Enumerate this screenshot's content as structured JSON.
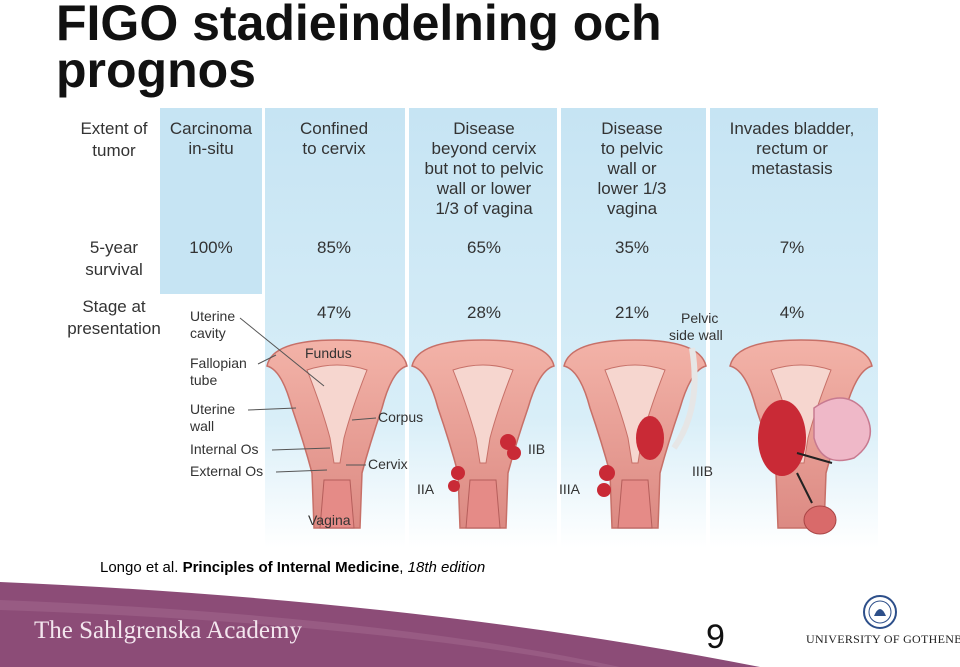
{
  "slide": {
    "title_line1": "FIGO stadieindelning och",
    "title_line2": "prognos",
    "page_number": "9"
  },
  "figure": {
    "row_labels": {
      "extent_line1": "Extent of",
      "extent_line2": "tumor",
      "survival_line1": "5-year",
      "survival_line2": "survival",
      "stage_line1": "Stage at",
      "stage_line2": "presentation"
    },
    "columns": [
      {
        "extent": [
          "Carcinoma",
          "in-situ"
        ],
        "survival": "100%",
        "stage": ""
      },
      {
        "extent": [
          "Confined",
          "to cervix"
        ],
        "survival": "85%",
        "stage": "47%"
      },
      {
        "extent": [
          "Disease",
          "beyond cervix",
          "but not to pelvic",
          "wall or lower",
          "1/3 of vagina"
        ],
        "survival": "65%",
        "stage": "28%"
      },
      {
        "extent": [
          "Disease",
          "to pelvic",
          "wall or",
          "lower 1/3",
          "vagina"
        ],
        "survival": "35%",
        "stage": "21%"
      },
      {
        "extent": [
          "Invades bladder,",
          "rectum or",
          "metastasis"
        ],
        "survival": "7%",
        "stage": "4%"
      }
    ],
    "anatomy_labels": {
      "uterine_cavity_1": "Uterine",
      "uterine_cavity_2": "cavity",
      "fallopian_1": "Fallopian",
      "fallopian_2": "tube",
      "uterine_wall_1": "Uterine",
      "uterine_wall_2": "wall",
      "internal_os": "Internal Os",
      "external_os": "External Os",
      "fundus": "Fundus",
      "corpus": "Corpus",
      "cervix": "Cervix",
      "vagina": "Vagina",
      "pelvic_1": "Pelvic",
      "pelvic_2": "side wall"
    },
    "stage_labels": {
      "iia": "IIA",
      "iib": "IIB",
      "iiia": "IIIA",
      "iiib": "IIIB"
    }
  },
  "citation": {
    "authors": "Longo et al. ",
    "book": "Principles of Internal Medicine",
    "sep": ", ",
    "edition": "18th edition"
  },
  "footer": {
    "brand": "The Sahlgrenska Academy",
    "university": "UNIVERSITY OF GOTHENBURG"
  },
  "colors": {
    "panel_blue": "#c6e4f3",
    "panel_blue_light": "#dcf0fa",
    "footer_purple": "#8c4c77",
    "uterus_pink": "#e9a49a",
    "tumor_red": "#c92a36"
  }
}
